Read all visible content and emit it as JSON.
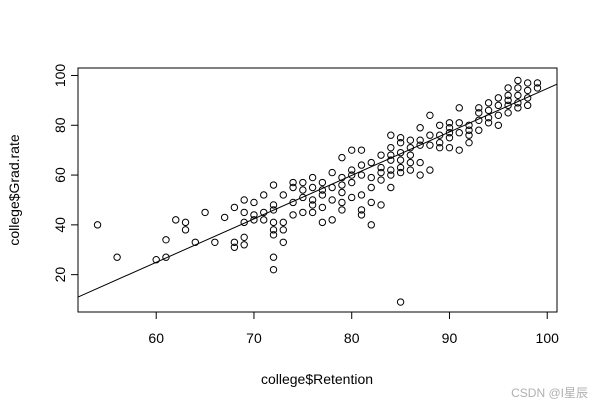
{
  "chart_data": {
    "type": "scatter",
    "xlabel": "college$Retention",
    "ylabel": "college$Grad.rate",
    "xlim": [
      52,
      101
    ],
    "ylim": [
      5,
      103
    ],
    "x_ticks": [
      60,
      70,
      80,
      90,
      100
    ],
    "y_ticks": [
      20,
      40,
      60,
      80,
      100
    ],
    "marker": "open-circle",
    "regression_line": {
      "x": [
        52,
        101
      ],
      "y": [
        11.0,
        96.5
      ]
    },
    "x": [
      54,
      56,
      60,
      61,
      61,
      62,
      63,
      63,
      64,
      65,
      66,
      67,
      68,
      68,
      68,
      69,
      69,
      69,
      69,
      69,
      70,
      70,
      70,
      71,
      71,
      71,
      72,
      72,
      72,
      72,
      72,
      72,
      72,
      72,
      73,
      73,
      73,
      73,
      74,
      74,
      74,
      74,
      75,
      75,
      75,
      75,
      76,
      76,
      76,
      76,
      76,
      77,
      77,
      77,
      77,
      77,
      78,
      78,
      78,
      78,
      79,
      79,
      79,
      79,
      79,
      79,
      80,
      80,
      80,
      80,
      80,
      81,
      81,
      81,
      81,
      81,
      81,
      82,
      82,
      82,
      82,
      82,
      83,
      83,
      83,
      83,
      83,
      84,
      84,
      84,
      84,
      84,
      84,
      84,
      85,
      85,
      85,
      85,
      85,
      85,
      85,
      86,
      86,
      86,
      86,
      86,
      87,
      87,
      87,
      87,
      87,
      88,
      88,
      88,
      88,
      89,
      89,
      89,
      89,
      90,
      90,
      90,
      90,
      90,
      91,
      91,
      91,
      91,
      92,
      92,
      92,
      92,
      93,
      93,
      93,
      93,
      94,
      94,
      94,
      94,
      95,
      95,
      95,
      95,
      96,
      96,
      96,
      96,
      96,
      97,
      97,
      97,
      97,
      97,
      98,
      98,
      98,
      98,
      99,
      99
    ],
    "y": [
      40,
      27,
      26,
      27,
      34,
      42,
      38,
      41,
      33,
      45,
      33,
      43,
      47,
      33,
      31,
      45,
      41,
      35,
      50,
      32,
      49,
      42,
      44,
      45,
      52,
      42,
      56,
      48,
      46,
      41,
      38,
      27,
      22,
      36,
      41,
      38,
      33,
      52,
      55,
      44,
      49,
      57,
      51,
      57,
      45,
      54,
      59,
      55,
      50,
      48,
      45,
      54,
      52,
      57,
      47,
      41,
      61,
      55,
      50,
      42,
      59,
      67,
      56,
      53,
      49,
      46,
      70,
      60,
      57,
      51,
      62,
      70,
      64,
      60,
      52,
      44,
      46,
      65,
      59,
      55,
      49,
      40,
      68,
      63,
      61,
      58,
      48,
      76,
      71,
      68,
      66,
      62,
      60,
      55,
      73,
      69,
      66,
      63,
      61,
      75,
      9,
      74,
      68,
      65,
      62,
      71,
      79,
      74,
      72,
      65,
      60,
      84,
      76,
      72,
      62,
      80,
      76,
      73,
      71,
      81,
      79,
      77,
      75,
      71,
      87,
      81,
      77,
      70,
      80,
      78,
      76,
      73,
      87,
      85,
      82,
      78,
      89,
      86,
      83,
      81,
      91,
      88,
      84,
      80,
      95,
      92,
      90,
      88,
      85,
      98,
      95,
      92,
      89,
      87,
      97,
      94,
      91,
      88,
      97,
      95
    ]
  },
  "watermark": "CSDN @I星辰"
}
